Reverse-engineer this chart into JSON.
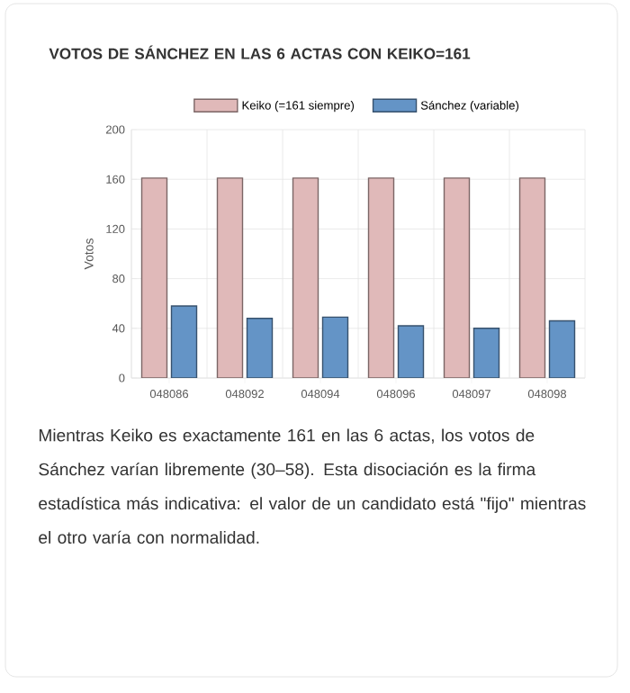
{
  "chart_data": {
    "type": "bar",
    "title": "VOTOS DE SÁNCHEZ EN LAS 6 ACTAS CON KEIKO=161",
    "categories": [
      "048086",
      "048092",
      "048094",
      "048096",
      "048097",
      "048098"
    ],
    "series": [
      {
        "name": "Keiko (=161 siempre)",
        "color": "#e0b9b9",
        "values": [
          161,
          161,
          161,
          161,
          161,
          161
        ]
      },
      {
        "name": "Sánchez (variable)",
        "color": "#6494c6",
        "values": [
          58,
          48,
          49,
          42,
          40,
          46
        ]
      }
    ],
    "ylabel": "Votos",
    "ylim": [
      0,
      200
    ],
    "yticks": [
      0,
      40,
      80,
      120,
      160,
      200
    ],
    "grid": true,
    "legend": "top",
    "annotations": [
      "Mientras Keiko es exactamente 161 en las 6 actas, los votos de Sánchez varían libremente (30–58). Esta disociación es la firma estadística más indicativa: el valor de un candidato está \"fijo\" mientras el otro varía con normalidad."
    ]
  }
}
